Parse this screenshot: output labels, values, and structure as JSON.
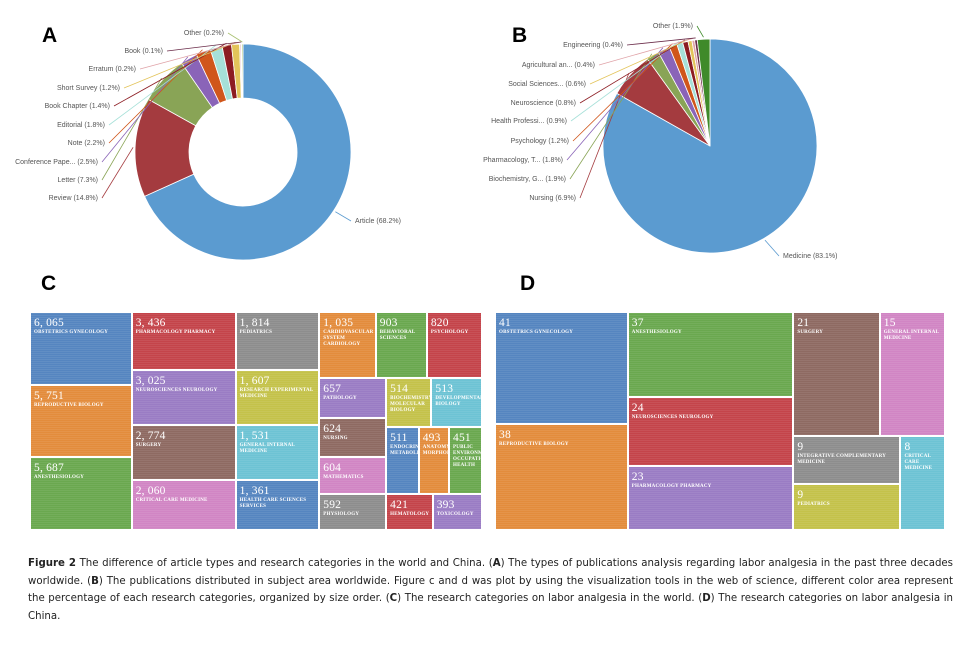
{
  "panels": {
    "a": "A",
    "b": "B",
    "c": "C",
    "d": "D"
  },
  "chart_data": [
    {
      "id": "A",
      "type": "pie",
      "subtype": "donut",
      "title": "Types of publications (worldwide)",
      "slices": [
        {
          "label": "Article (68.2%)",
          "value": 68.2,
          "color": "#5b9bd0"
        },
        {
          "label": "Review (14.8%)",
          "value": 14.8,
          "color": "#a43b3f"
        },
        {
          "label": "Letter (7.3%)",
          "value": 7.3,
          "color": "#89a456"
        },
        {
          "label": "Conference Pape... (2.5%)",
          "value": 2.5,
          "color": "#8a64b8"
        },
        {
          "label": "Note (2.2%)",
          "value": 2.2,
          "color": "#d0561b"
        },
        {
          "label": "Editorial (1.8%)",
          "value": 1.8,
          "color": "#a6e0d8"
        },
        {
          "label": "Book Chapter (1.4%)",
          "value": 1.4,
          "color": "#8c1c22"
        },
        {
          "label": "Short Survey (1.2%)",
          "value": 1.2,
          "color": "#e3c45a"
        },
        {
          "label": "Erratum (0.2%)",
          "value": 0.2,
          "color": "#e0a3a8"
        },
        {
          "label": "Book (0.1%)",
          "value": 0.1,
          "color": "#6b2d4a"
        },
        {
          "label": "Other (0.2%)",
          "value": 0.2,
          "color": "#a8c070"
        }
      ]
    },
    {
      "id": "B",
      "type": "pie",
      "title": "Publications by subject area (worldwide)",
      "slices": [
        {
          "label": "Medicine (83.1%)",
          "value": 83.1,
          "color": "#5b9bd0"
        },
        {
          "label": "Nursing (6.9%)",
          "value": 6.9,
          "color": "#a43b3f"
        },
        {
          "label": "Biochemistry, G... (1.9%)",
          "value": 1.9,
          "color": "#89a456"
        },
        {
          "label": "Pharmacology, T... (1.8%)",
          "value": 1.8,
          "color": "#8a64b8"
        },
        {
          "label": "Psychology (1.2%)",
          "value": 1.2,
          "color": "#d0561b"
        },
        {
          "label": "Health Professi... (0.9%)",
          "value": 0.9,
          "color": "#a6e0d8"
        },
        {
          "label": "Neuroscience (0.8%)",
          "value": 0.8,
          "color": "#8c1c22"
        },
        {
          "label": "Social Sciences... (0.6%)",
          "value": 0.6,
          "color": "#e3c45a"
        },
        {
          "label": "Agricultural an... (0.4%)",
          "value": 0.4,
          "color": "#e0a3a8"
        },
        {
          "label": "Engineering (0.4%)",
          "value": 0.4,
          "color": "#6b2d4a"
        },
        {
          "label": "Other (1.9%)",
          "value": 1.9,
          "color": "#3f8a2a"
        }
      ]
    },
    {
      "id": "C",
      "type": "treemap",
      "title": "Research categories on labor analgesia in the world",
      "items": [
        {
          "value": "6, 065",
          "label": "OBSTETRICS GYNECOLOGY",
          "color": "#5585c0"
        },
        {
          "value": "5, 751",
          "label": "REPRODUCTIVE BIOLOGY",
          "color": "#e38c3c"
        },
        {
          "value": "5, 687",
          "label": "ANESTHESIOLOGY",
          "color": "#6aa84f"
        },
        {
          "value": "3, 436",
          "label": "PHARMACOLOGY PHARMACY",
          "color": "#c4444a"
        },
        {
          "value": "3, 025",
          "label": "NEUROSCIENCES NEUROLOGY",
          "color": "#9a7cc4"
        },
        {
          "value": "2, 774",
          "label": "SURGERY",
          "color": "#8e6a62"
        },
        {
          "value": "2, 060",
          "label": "CRITICAL CARE MEDICINE",
          "color": "#d185c4"
        },
        {
          "value": "1, 814",
          "label": "PEDIATRICS",
          "color": "#8d8d8d"
        },
        {
          "value": "1, 607",
          "label": "RESEARCH EXPERIMENTAL MEDICINE",
          "color": "#c4c24a"
        },
        {
          "value": "1, 531",
          "label": "GENERAL INTERNAL MEDICINE",
          "color": "#6dc3d4"
        },
        {
          "value": "1, 361",
          "label": "HEALTH CARE SCIENCES SERVICES",
          "color": "#5585c0"
        },
        {
          "value": "1, 035",
          "label": "CARDIOVASCULAR SYSTEM CARDIOLOGY",
          "color": "#e38c3c"
        },
        {
          "value": "903",
          "label": "BEHAVIORAL SCIENCES",
          "color": "#6aa84f"
        },
        {
          "value": "820",
          "label": "PSYCHOLOGY",
          "color": "#c4444a"
        },
        {
          "value": "657",
          "label": "PATHOLOGY",
          "color": "#9a7cc4"
        },
        {
          "value": "624",
          "label": "NURSING",
          "color": "#8e6a62"
        },
        {
          "value": "604",
          "label": "MATHEMATICS",
          "color": "#d185c4"
        },
        {
          "value": "592",
          "label": "PHYSIOLOGY",
          "color": "#8d8d8d"
        },
        {
          "value": "514",
          "label": "BIOCHEMISTRY MOLECULAR BIOLOGY",
          "color": "#c4c24a"
        },
        {
          "value": "513",
          "label": "DEVELOPMENTAL BIOLOGY",
          "color": "#6dc3d4"
        },
        {
          "value": "511",
          "label": "ENDOCRINOLOGY METABOLISM",
          "color": "#5585c0"
        },
        {
          "value": "493",
          "label": "ANATOMY MORPHOLOGY",
          "color": "#e38c3c"
        },
        {
          "value": "451",
          "label": "PUBLIC ENVIRONMENTAL OCCUPATIONAL HEALTH",
          "color": "#6aa84f"
        },
        {
          "value": "421",
          "label": "HEMATOLOGY",
          "color": "#c4444a"
        },
        {
          "value": "393",
          "label": "TOXICOLOGY",
          "color": "#9a7cc4"
        }
      ]
    },
    {
      "id": "D",
      "type": "treemap",
      "title": "Research categories on labor analgesia in China",
      "items": [
        {
          "value": "41",
          "label": "OBSTETRICS GYNECOLOGY",
          "color": "#5585c0"
        },
        {
          "value": "38",
          "label": "REPRODUCTIVE BIOLOGY",
          "color": "#e38c3c"
        },
        {
          "value": "37",
          "label": "ANESTHESIOLOGY",
          "color": "#6aa84f"
        },
        {
          "value": "24",
          "label": "NEUROSCIENCES NEUROLOGY",
          "color": "#c4444a"
        },
        {
          "value": "23",
          "label": "PHARMACOLOGY PHARMACY",
          "color": "#9a7cc4"
        },
        {
          "value": "21",
          "label": "SURGERY",
          "color": "#8e6a62"
        },
        {
          "value": "15",
          "label": "GENERAL INTERNAL MEDICINE",
          "color": "#d185c4"
        },
        {
          "value": "9",
          "label": "INTEGRATIVE COMPLEMENTARY MEDICINE",
          "color": "#8d8d8d"
        },
        {
          "value": "9",
          "label": "PEDIATRICS",
          "color": "#c4c24a"
        },
        {
          "value": "8",
          "label": "CRITICAL CARE MEDICINE",
          "color": "#6dc3d4"
        }
      ]
    }
  ],
  "caption": {
    "figure_label": "Figure 2",
    "segments": [
      {
        "t": " The difference of article types and research categories in the world and China. (",
        "b": false
      },
      {
        "t": "A",
        "b": true
      },
      {
        "t": ") The types of publications analysis regarding labor analgesia in the past three decades worldwide. (",
        "b": false
      },
      {
        "t": "B",
        "b": true
      },
      {
        "t": ") The publications distributed in subject area worldwide. Figure c and d was plot by using the visualization tools in the web of science, different color area represent the percentage of each research categories, organized by size order. (",
        "b": false
      },
      {
        "t": "C",
        "b": true
      },
      {
        "t": ") The research categories on labor analgesia in the world. (",
        "b": false
      },
      {
        "t": "D",
        "b": true
      },
      {
        "t": ") The research categories on labor analgesia in China.",
        "b": false
      }
    ]
  }
}
